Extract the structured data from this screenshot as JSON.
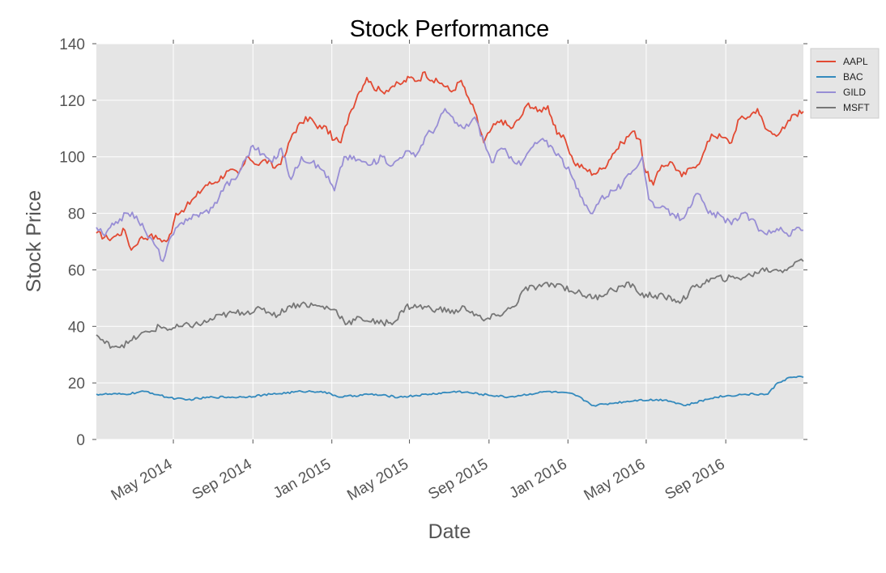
{
  "chart_data": {
    "type": "line",
    "title": "Stock Performance",
    "xlabel": "Date",
    "ylabel": "Stock Price",
    "ylim": [
      0,
      140
    ],
    "xlim": [
      "2014-01-02",
      "2016-12-30"
    ],
    "x_ticks": [
      {
        "date": "2014-05-01",
        "label": "May 2014"
      },
      {
        "date": "2014-09-01",
        "label": "Sep 2014"
      },
      {
        "date": "2015-01-01",
        "label": "Jan 2015"
      },
      {
        "date": "2015-05-01",
        "label": "May 2015"
      },
      {
        "date": "2015-09-01",
        "label": "Sep 2015"
      },
      {
        "date": "2016-01-01",
        "label": "Jan 2016"
      },
      {
        "date": "2016-05-01",
        "label": "May 2016"
      },
      {
        "date": "2016-09-01",
        "label": "Sep 2016"
      }
    ],
    "y_ticks": [
      0,
      20,
      40,
      60,
      80,
      100,
      120,
      140
    ],
    "grid": true,
    "legend_position": "top-right",
    "series": [
      {
        "name": "AAPL",
        "color": "#e24a33",
        "points": [
          [
            "2014-01-02",
            73
          ],
          [
            "2014-01-20",
            71
          ],
          [
            "2014-02-01",
            72
          ],
          [
            "2014-02-15",
            74
          ],
          [
            "2014-02-25",
            67
          ],
          [
            "2014-03-10",
            71
          ],
          [
            "2014-03-25",
            72
          ],
          [
            "2014-04-10",
            71
          ],
          [
            "2014-04-20",
            70
          ],
          [
            "2014-04-28",
            73
          ],
          [
            "2014-05-05",
            80
          ],
          [
            "2014-05-20",
            82
          ],
          [
            "2014-06-05",
            86
          ],
          [
            "2014-06-20",
            90
          ],
          [
            "2014-07-05",
            91
          ],
          [
            "2014-07-25",
            95
          ],
          [
            "2014-08-10",
            94
          ],
          [
            "2014-08-25",
            100
          ],
          [
            "2014-09-10",
            97
          ],
          [
            "2014-09-20",
            99
          ],
          [
            "2014-10-05",
            96
          ],
          [
            "2014-10-20",
            100
          ],
          [
            "2014-11-01",
            108
          ],
          [
            "2014-11-15",
            112
          ],
          [
            "2014-11-28",
            114
          ],
          [
            "2014-12-10",
            110
          ],
          [
            "2014-12-20",
            111
          ],
          [
            "2015-01-05",
            106
          ],
          [
            "2015-01-15",
            105
          ],
          [
            "2015-01-28",
            115
          ],
          [
            "2015-02-10",
            122
          ],
          [
            "2015-02-24",
            128
          ],
          [
            "2015-03-05",
            125
          ],
          [
            "2015-03-20",
            123
          ],
          [
            "2015-04-05",
            125
          ],
          [
            "2015-04-20",
            126
          ],
          [
            "2015-05-01",
            128
          ],
          [
            "2015-05-15",
            127
          ],
          [
            "2015-05-25",
            130
          ],
          [
            "2015-06-05",
            127
          ],
          [
            "2015-06-20",
            126
          ],
          [
            "2015-07-05",
            123
          ],
          [
            "2015-07-20",
            127
          ],
          [
            "2015-07-28",
            122
          ],
          [
            "2015-08-10",
            116
          ],
          [
            "2015-08-24",
            105
          ],
          [
            "2015-09-05",
            110
          ],
          [
            "2015-09-20",
            113
          ],
          [
            "2015-10-05",
            110
          ],
          [
            "2015-10-20",
            114
          ],
          [
            "2015-11-01",
            119
          ],
          [
            "2015-11-15",
            116
          ],
          [
            "2015-12-01",
            118
          ],
          [
            "2015-12-15",
            108
          ],
          [
            "2015-12-28",
            106
          ],
          [
            "2016-01-10",
            98
          ],
          [
            "2016-01-25",
            96
          ],
          [
            "2016-02-10",
            94
          ],
          [
            "2016-02-25",
            96
          ],
          [
            "2016-03-10",
            101
          ],
          [
            "2016-03-25",
            105
          ],
          [
            "2016-04-10",
            109
          ],
          [
            "2016-04-22",
            106
          ],
          [
            "2016-04-28",
            96
          ],
          [
            "2016-05-12",
            90
          ],
          [
            "2016-05-25",
            97
          ],
          [
            "2016-06-10",
            98
          ],
          [
            "2016-06-25",
            93
          ],
          [
            "2016-07-10",
            96
          ],
          [
            "2016-07-25",
            99
          ],
          [
            "2016-08-10",
            108
          ],
          [
            "2016-08-25",
            107
          ],
          [
            "2016-09-10",
            105
          ],
          [
            "2016-09-20",
            113
          ],
          [
            "2016-10-05",
            114
          ],
          [
            "2016-10-20",
            117
          ],
          [
            "2016-11-01",
            110
          ],
          [
            "2016-11-15",
            108
          ],
          [
            "2016-12-01",
            110
          ],
          [
            "2016-12-15",
            115
          ],
          [
            "2016-12-30",
            116
          ]
        ]
      },
      {
        "name": "BAC",
        "color": "#348abd",
        "points": [
          [
            "2014-01-02",
            16
          ],
          [
            "2014-02-15",
            16
          ],
          [
            "2014-03-20",
            17
          ],
          [
            "2014-04-20",
            15
          ],
          [
            "2014-05-20",
            14
          ],
          [
            "2014-07-01",
            15
          ],
          [
            "2014-08-15",
            15
          ],
          [
            "2014-10-01",
            16
          ],
          [
            "2014-11-15",
            17
          ],
          [
            "2014-12-15",
            17
          ],
          [
            "2015-01-15",
            15
          ],
          [
            "2015-03-01",
            16
          ],
          [
            "2015-04-15",
            15
          ],
          [
            "2015-06-01",
            16
          ],
          [
            "2015-07-15",
            17
          ],
          [
            "2015-08-20",
            16
          ],
          [
            "2015-10-01",
            15
          ],
          [
            "2015-12-01",
            17
          ],
          [
            "2016-01-10",
            16
          ],
          [
            "2016-02-10",
            12
          ],
          [
            "2016-03-15",
            13
          ],
          [
            "2016-04-20",
            14
          ],
          [
            "2016-06-01",
            14
          ],
          [
            "2016-07-01",
            12
          ],
          [
            "2016-08-15",
            15
          ],
          [
            "2016-10-01",
            16
          ],
          [
            "2016-11-05",
            16
          ],
          [
            "2016-11-20",
            20
          ],
          [
            "2016-12-10",
            22
          ],
          [
            "2016-12-30",
            22
          ]
        ]
      },
      {
        "name": "GILD",
        "color": "#988ed5",
        "points": [
          [
            "2014-01-02",
            75
          ],
          [
            "2014-01-15",
            72
          ],
          [
            "2014-02-01",
            77
          ],
          [
            "2014-02-20",
            80
          ],
          [
            "2014-03-05",
            79
          ],
          [
            "2014-03-20",
            73
          ],
          [
            "2014-04-05",
            68
          ],
          [
            "2014-04-15",
            63
          ],
          [
            "2014-04-28",
            72
          ],
          [
            "2014-05-20",
            78
          ],
          [
            "2014-06-15",
            80
          ],
          [
            "2014-07-01",
            82
          ],
          [
            "2014-07-20",
            90
          ],
          [
            "2014-08-05",
            92
          ],
          [
            "2014-08-20",
            99
          ],
          [
            "2014-09-01",
            104
          ],
          [
            "2014-09-15",
            101
          ],
          [
            "2014-10-01",
            98
          ],
          [
            "2014-10-15",
            103
          ],
          [
            "2014-10-30",
            92
          ],
          [
            "2014-11-15",
            100
          ],
          [
            "2014-12-01",
            98
          ],
          [
            "2014-12-20",
            95
          ],
          [
            "2015-01-05",
            88
          ],
          [
            "2015-01-20",
            100
          ],
          [
            "2015-02-10",
            99
          ],
          [
            "2015-03-01",
            97
          ],
          [
            "2015-03-20",
            100
          ],
          [
            "2015-04-05",
            97
          ],
          [
            "2015-04-25",
            102
          ],
          [
            "2015-05-10",
            100
          ],
          [
            "2015-05-28",
            108
          ],
          [
            "2015-06-10",
            110
          ],
          [
            "2015-06-25",
            117
          ],
          [
            "2015-07-10",
            112
          ],
          [
            "2015-07-25",
            110
          ],
          [
            "2015-08-10",
            114
          ],
          [
            "2015-08-25",
            105
          ],
          [
            "2015-09-05",
            98
          ],
          [
            "2015-09-20",
            103
          ],
          [
            "2015-10-05",
            100
          ],
          [
            "2015-10-20",
            97
          ],
          [
            "2015-11-05",
            103
          ],
          [
            "2015-11-20",
            106
          ],
          [
            "2015-12-05",
            104
          ],
          [
            "2015-12-20",
            100
          ],
          [
            "2016-01-05",
            94
          ],
          [
            "2016-01-20",
            86
          ],
          [
            "2016-02-05",
            80
          ],
          [
            "2016-02-20",
            85
          ],
          [
            "2016-03-10",
            88
          ],
          [
            "2016-03-25",
            90
          ],
          [
            "2016-04-10",
            95
          ],
          [
            "2016-04-25",
            100
          ],
          [
            "2016-05-05",
            85
          ],
          [
            "2016-05-20",
            82
          ],
          [
            "2016-06-10",
            80
          ],
          [
            "2016-06-25",
            78
          ],
          [
            "2016-07-05",
            82
          ],
          [
            "2016-07-20",
            87
          ],
          [
            "2016-08-05",
            80
          ],
          [
            "2016-08-25",
            79
          ],
          [
            "2016-09-10",
            76
          ],
          [
            "2016-09-25",
            80
          ],
          [
            "2016-10-10",
            78
          ],
          [
            "2016-10-25",
            74
          ],
          [
            "2016-11-10",
            73
          ],
          [
            "2016-11-25",
            75
          ],
          [
            "2016-12-10",
            72
          ],
          [
            "2016-12-20",
            75
          ],
          [
            "2016-12-30",
            74
          ]
        ]
      },
      {
        "name": "MSFT",
        "color": "#777777",
        "points": [
          [
            "2014-01-02",
            37
          ],
          [
            "2014-01-15",
            34
          ],
          [
            "2014-02-01",
            33
          ],
          [
            "2014-02-20",
            34
          ],
          [
            "2014-03-10",
            37
          ],
          [
            "2014-03-25",
            38
          ],
          [
            "2014-04-10",
            40
          ],
          [
            "2014-04-25",
            39
          ],
          [
            "2014-05-15",
            40
          ],
          [
            "2014-06-15",
            41
          ],
          [
            "2014-07-15",
            44
          ],
          [
            "2014-08-15",
            45
          ],
          [
            "2014-09-15",
            46
          ],
          [
            "2014-10-10",
            44
          ],
          [
            "2014-10-25",
            47
          ],
          [
            "2014-11-15",
            48
          ],
          [
            "2014-12-15",
            47
          ],
          [
            "2015-01-05",
            46
          ],
          [
            "2015-01-25",
            41
          ],
          [
            "2015-02-15",
            43
          ],
          [
            "2015-03-15",
            41
          ],
          [
            "2015-04-10",
            42
          ],
          [
            "2015-04-25",
            47
          ],
          [
            "2015-05-15",
            47
          ],
          [
            "2015-06-15",
            46
          ],
          [
            "2015-07-15",
            45
          ],
          [
            "2015-07-25",
            47
          ],
          [
            "2015-08-24",
            42
          ],
          [
            "2015-09-15",
            44
          ],
          [
            "2015-10-10",
            47
          ],
          [
            "2015-10-25",
            53
          ],
          [
            "2015-11-15",
            54
          ],
          [
            "2015-12-15",
            55
          ],
          [
            "2016-01-15",
            52
          ],
          [
            "2016-02-10",
            50
          ],
          [
            "2016-03-10",
            53
          ],
          [
            "2016-04-10",
            55
          ],
          [
            "2016-04-22",
            51
          ],
          [
            "2016-05-15",
            51
          ],
          [
            "2016-06-25",
            49
          ],
          [
            "2016-07-15",
            54
          ],
          [
            "2016-08-15",
            57
          ],
          [
            "2016-09-15",
            57
          ],
          [
            "2016-10-10",
            58
          ],
          [
            "2016-10-25",
            60
          ],
          [
            "2016-11-15",
            60
          ],
          [
            "2016-12-01",
            60
          ],
          [
            "2016-12-20",
            63
          ],
          [
            "2016-12-30",
            63
          ]
        ]
      }
    ]
  }
}
